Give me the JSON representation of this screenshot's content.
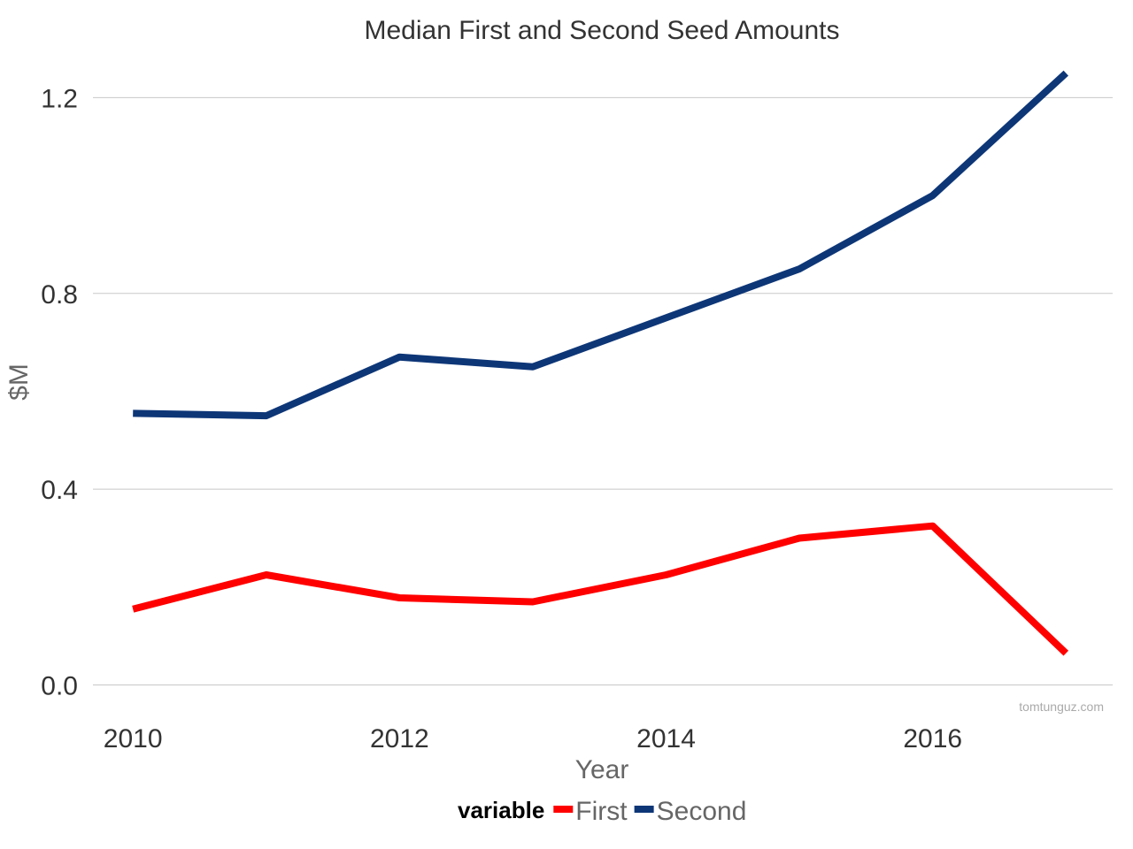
{
  "chart_data": {
    "type": "line",
    "title": "Median First and Second Seed Amounts",
    "xlabel": "Year",
    "ylabel": "$M",
    "x": [
      2010,
      2011,
      2012,
      2013,
      2014,
      2015,
      2016,
      2017
    ],
    "x_ticks": [
      "2010",
      "2012",
      "2014",
      "2016"
    ],
    "y_ticks": [
      "0.0",
      "0.4",
      "0.8",
      "1.2"
    ],
    "xlim": [
      2009.7,
      2017.35
    ],
    "ylim": [
      -0.055,
      1.3
    ],
    "grid": true,
    "legend_title": "variable",
    "legend_position": "bottom",
    "series": [
      {
        "name": "First",
        "color": "#ff0000",
        "values": [
          0.155,
          0.225,
          0.178,
          0.17,
          0.225,
          0.3,
          0.325,
          0.065
        ]
      },
      {
        "name": "Second",
        "color": "#0d3677",
        "values": [
          0.555,
          0.55,
          0.67,
          0.65,
          0.75,
          0.85,
          1.0,
          1.25
        ]
      }
    ],
    "watermark": "tomtunguz.com"
  }
}
